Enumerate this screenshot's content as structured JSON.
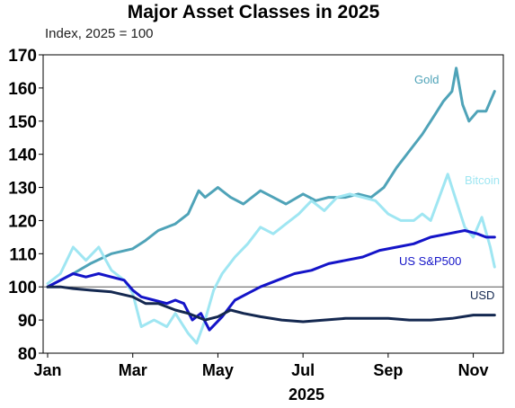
{
  "chart_data": {
    "type": "line",
    "title": "Major Asset Classes in 2025",
    "subtitle": "Index, 2025 = 100",
    "xlabel": "2025",
    "ylabel": "",
    "ylim": [
      80,
      170
    ],
    "yticks": [
      80,
      90,
      100,
      110,
      120,
      130,
      140,
      150,
      160,
      170
    ],
    "xlim": [
      0,
      10.6
    ],
    "xtick_labels": [
      "Jan",
      "Mar",
      "May",
      "Jul",
      "Sep",
      "Nov"
    ],
    "xtick_positions": [
      0,
      2,
      4,
      6,
      8,
      10
    ],
    "reference_line": 100,
    "grid": false,
    "series": [
      {
        "name": "Gold",
        "color": "#4fa3b8",
        "x": [
          0,
          0.3,
          0.6,
          1.0,
          1.5,
          2.0,
          2.3,
          2.6,
          3.0,
          3.3,
          3.55,
          3.7,
          4.0,
          4.3,
          4.6,
          5.0,
          5.3,
          5.6,
          6.0,
          6.3,
          6.6,
          7.0,
          7.3,
          7.6,
          7.9,
          8.2,
          8.5,
          8.8,
          9.1,
          9.3,
          9.5,
          9.6,
          9.75,
          9.9,
          10.1,
          10.3,
          10.5
        ],
        "y": [
          100,
          102,
          104,
          107,
          110,
          111.5,
          114,
          117,
          119,
          122,
          129,
          127,
          130,
          127,
          125,
          129,
          127,
          125,
          128,
          126,
          127,
          127,
          128,
          127,
          130,
          136,
          141,
          146,
          152,
          156,
          159,
          166,
          155,
          150,
          153,
          153,
          159
        ]
      },
      {
        "name": "Bitcoin",
        "color": "#9fe6f2",
        "x": [
          0,
          0.3,
          0.6,
          0.9,
          1.2,
          1.5,
          1.8,
          2.0,
          2.2,
          2.5,
          2.8,
          3.0,
          3.3,
          3.5,
          3.7,
          3.9,
          4.1,
          4.4,
          4.7,
          5.0,
          5.3,
          5.6,
          5.9,
          6.2,
          6.5,
          6.8,
          7.1,
          7.4,
          7.7,
          8.0,
          8.3,
          8.6,
          8.8,
          9.0,
          9.2,
          9.4,
          9.6,
          9.8,
          10.0,
          10.2,
          10.4,
          10.5
        ],
        "y": [
          101,
          104,
          112,
          108,
          112,
          105,
          102,
          98,
          88,
          90,
          88,
          92,
          86,
          83,
          90,
          99,
          104,
          109,
          113,
          118,
          116,
          119,
          122,
          126,
          123,
          127,
          128,
          127,
          126,
          122,
          120,
          120,
          122,
          120,
          127,
          134,
          126,
          118,
          115,
          121,
          112,
          106
        ]
      },
      {
        "name": "US S&P500",
        "color": "#1414c8",
        "x": [
          0,
          0.3,
          0.6,
          0.9,
          1.2,
          1.5,
          1.8,
          2.0,
          2.2,
          2.5,
          2.8,
          3.0,
          3.2,
          3.4,
          3.6,
          3.8,
          4.1,
          4.4,
          4.7,
          5.0,
          5.4,
          5.8,
          6.2,
          6.6,
          7.0,
          7.4,
          7.8,
          8.2,
          8.6,
          9.0,
          9.4,
          9.8,
          10.1,
          10.3,
          10.5
        ],
        "y": [
          100,
          102,
          104,
          103,
          104,
          103,
          102,
          99,
          97,
          96,
          95,
          96,
          95,
          90,
          92,
          87,
          91,
          96,
          98,
          100,
          102,
          104,
          105,
          107,
          108,
          109,
          111,
          112,
          113,
          115,
          116,
          117,
          116,
          115,
          115
        ]
      },
      {
        "name": "USD",
        "color": "#142850",
        "x": [
          0,
          0.3,
          0.6,
          1.0,
          1.5,
          2.0,
          2.3,
          2.6,
          3.0,
          3.3,
          3.5,
          3.7,
          4.0,
          4.3,
          4.6,
          5.0,
          5.5,
          6.0,
          6.5,
          7.0,
          7.5,
          8.0,
          8.5,
          9.0,
          9.5,
          10.0,
          10.3,
          10.5
        ],
        "y": [
          100,
          100,
          99.5,
          99,
          98.5,
          97,
          95,
          95,
          93,
          92,
          91,
          90,
          91,
          93,
          92,
          91,
          90,
          89.5,
          90,
          90.5,
          90.5,
          90.5,
          90,
          90,
          90.5,
          91.5,
          91.5,
          91.5
        ]
      }
    ]
  }
}
